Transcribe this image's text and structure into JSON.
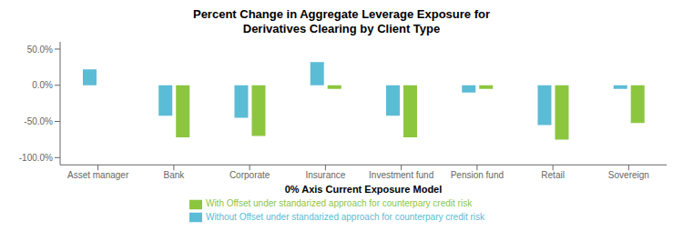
{
  "chart_data": {
    "type": "bar",
    "title": "Percent Change in Aggregate Leverage Exposure for\nDerivatives Clearing by Client Type",
    "xlabel": "0% Axis Current Exposure Model",
    "categories": [
      "Asset manager",
      "Bank",
      "Corporate",
      "Insurance",
      "Investment fund",
      "Pension fund",
      "Retail",
      "Sovereign"
    ],
    "series": [
      {
        "name": "Without Offset under standarized approach for counterpary credit risk",
        "color": "#5BBCD6",
        "values": [
          22,
          -42,
          -45,
          32,
          -42,
          -10,
          -55,
          -5
        ]
      },
      {
        "name": "With Offset under standarized approach for counterpary credit risk",
        "color": "#8CC63F",
        "values": [
          0,
          -72,
          -70,
          -5,
          -72,
          -5,
          -75,
          -52
        ]
      }
    ],
    "ylim": [
      -110,
      60
    ],
    "yticks": [
      {
        "value": -100,
        "label": "-100.0%"
      },
      {
        "value": -50,
        "label": "-50.0%"
      },
      {
        "value": 0,
        "label": "0.0%"
      },
      {
        "value": 50,
        "label": "50.0%"
      }
    ],
    "grid": false,
    "legend": "bottom"
  }
}
